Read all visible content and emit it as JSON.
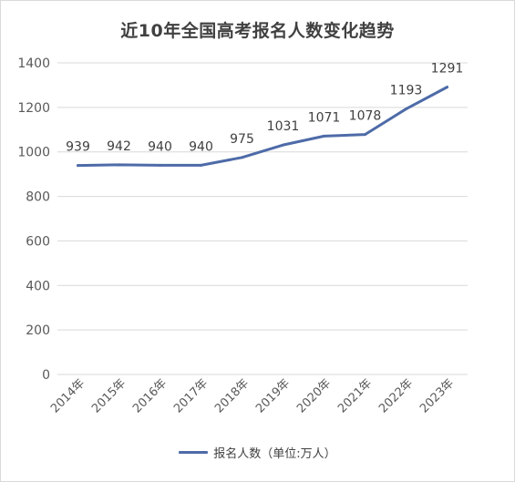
{
  "chart_data": {
    "type": "line",
    "title": "近10年全国高考报名人数变化趋势",
    "categories": [
      "2014年",
      "2015年",
      "2016年",
      "2017年",
      "2018年",
      "2019年",
      "2020年",
      "2021年",
      "2022年",
      "2023年"
    ],
    "series": [
      {
        "name": "报名人数（单位:万人）",
        "values": [
          939,
          942,
          940,
          940,
          975,
          1031,
          1071,
          1078,
          1193,
          1291
        ],
        "color": "#4e6ba8"
      }
    ],
    "ylim": [
      0,
      1400
    ],
    "yticks": [
      0,
      200,
      400,
      600,
      800,
      1000,
      1200,
      1400
    ],
    "grid": true,
    "legend": "bottom"
  }
}
